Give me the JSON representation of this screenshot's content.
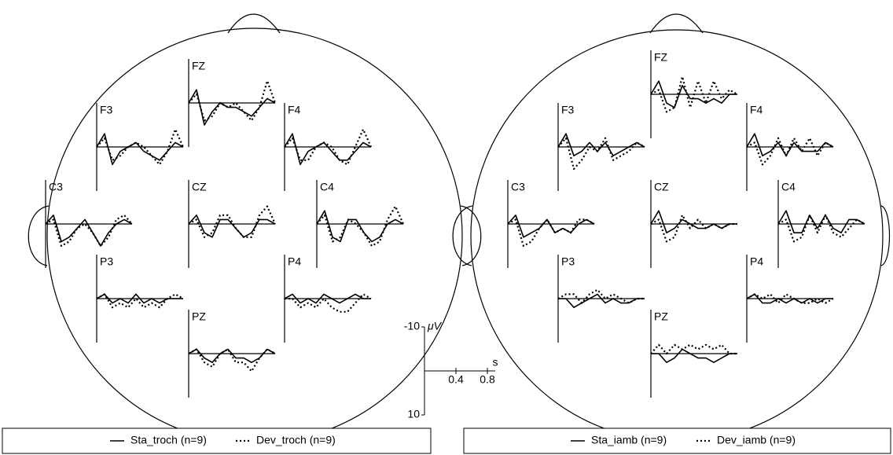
{
  "chart_data": [
    {
      "type": "erp-head",
      "x": [
        0,
        0.1,
        0.2,
        0.3,
        0.4,
        0.5,
        0.6,
        0.7,
        0.8,
        0.9,
        1.0,
        1.1
      ],
      "xlim": [
        0,
        1.1
      ],
      "ylim": [
        -10,
        10
      ],
      "y_inverted": true,
      "series": [
        {
          "name": "Sta_troch (n=9)",
          "color": "#000000",
          "dash": "solid"
        },
        {
          "name": "Dev_troch (n=9)",
          "color": "#000000",
          "dash": "dotted"
        }
      ],
      "electrodes": [
        {
          "label": "F3",
          "values": [
            [
              0,
              -3,
              4,
              1,
              0,
              -1,
              1,
              2,
              3,
              1,
              -1,
              0
            ],
            [
              0,
              -2,
              3,
              2,
              0,
              -1,
              0,
              2,
              4,
              1,
              -4,
              0
            ]
          ]
        },
        {
          "label": "FZ",
          "values": [
            [
              0,
              -3,
              5,
              2,
              0,
              1,
              1,
              2,
              3,
              1,
              -1,
              0
            ],
            [
              0,
              -2,
              4,
              3,
              0,
              1,
              0,
              2,
              4,
              1,
              -5,
              0
            ]
          ]
        },
        {
          "label": "F4",
          "values": [
            [
              0,
              -3,
              4,
              1,
              0,
              -1,
              1,
              3,
              3,
              1,
              -1,
              0
            ],
            [
              0,
              -2,
              3,
              3,
              0,
              -1,
              0,
              3,
              4,
              0,
              -4,
              0
            ]
          ]
        },
        {
          "label": "C3",
          "values": [
            [
              0,
              -2,
              4,
              3,
              1,
              -1,
              2,
              5,
              2,
              0,
              -1,
              0
            ],
            [
              0,
              -1,
              5,
              4,
              1,
              0,
              2,
              5,
              3,
              -1,
              -2,
              0
            ]
          ]
        },
        {
          "label": "CZ",
          "values": [
            [
              0,
              -2,
              2,
              3,
              -1,
              -1,
              1,
              3,
              2,
              -1,
              -1,
              0
            ],
            [
              0,
              -1,
              3,
              2,
              -2,
              -2,
              1,
              3,
              3,
              -2,
              -4,
              0
            ]
          ]
        },
        {
          "label": "C4",
          "values": [
            [
              0,
              -3,
              3,
              4,
              -1,
              -1,
              2,
              4,
              3,
              0,
              -1,
              0
            ],
            [
              0,
              -2,
              4,
              3,
              -1,
              0,
              2,
              5,
              4,
              -1,
              -4,
              0
            ]
          ]
        },
        {
          "label": "P3",
          "values": [
            [
              0,
              -1,
              1,
              0,
              1,
              -1,
              1,
              0,
              1,
              0,
              0,
              0
            ],
            [
              0,
              -1,
              2,
              1,
              2,
              0,
              2,
              1,
              2,
              0,
              -1,
              0
            ]
          ]
        },
        {
          "label": "P4",
          "values": [
            [
              0,
              -1,
              1,
              0,
              1,
              -1,
              0,
              1,
              0,
              -1,
              0,
              0
            ],
            [
              0,
              0,
              2,
              1,
              2,
              0,
              2,
              3,
              3,
              1,
              -1,
              0
            ]
          ]
        },
        {
          "label": "PZ",
          "values": [
            [
              0,
              -1,
              1,
              2,
              0,
              -1,
              1,
              1,
              2,
              1,
              -1,
              0
            ],
            [
              0,
              -1,
              2,
              3,
              0,
              -1,
              2,
              2,
              4,
              1,
              -1,
              0
            ]
          ]
        }
      ]
    },
    {
      "type": "erp-head",
      "x": [
        0,
        0.1,
        0.2,
        0.3,
        0.4,
        0.5,
        0.6,
        0.7,
        0.8,
        0.9,
        1.0,
        1.1
      ],
      "xlim": [
        0,
        1.1
      ],
      "ylim": [
        -10,
        10
      ],
      "y_inverted": true,
      "series": [
        {
          "name": "Sta_iamb (n=9)",
          "color": "#000000",
          "dash": "solid"
        },
        {
          "name": "Dev_iamb (n=9)",
          "color": "#000000",
          "dash": "dotted"
        }
      ],
      "electrodes": [
        {
          "label": "F3",
          "values": [
            [
              0,
              -3,
              2,
              1,
              -1,
              1,
              -1,
              2,
              1,
              0,
              -1,
              0
            ],
            [
              0,
              -2,
              5,
              3,
              0,
              1,
              -2,
              3,
              2,
              1,
              -1,
              0
            ]
          ]
        },
        {
          "label": "FZ",
          "values": [
            [
              0,
              -3,
              2,
              3,
              -2,
              1,
              1,
              2,
              1,
              2,
              0,
              0
            ],
            [
              0,
              -1,
              4,
              3,
              -4,
              3,
              -3,
              2,
              -3,
              1,
              -1,
              0
            ]
          ]
        },
        {
          "label": "F4",
          "values": [
            [
              0,
              -3,
              2,
              1,
              -1,
              2,
              -1,
              1,
              1,
              1,
              -1,
              0
            ],
            [
              0,
              -1,
              4,
              2,
              -2,
              2,
              -2,
              1,
              -2,
              2,
              -1,
              0
            ]
          ]
        },
        {
          "label": "C3",
          "values": [
            [
              0,
              -2,
              3,
              2,
              1,
              -1,
              2,
              1,
              2,
              0,
              -1,
              0
            ],
            [
              0,
              -1,
              5,
              4,
              1,
              -1,
              2,
              1,
              2,
              -1,
              -1,
              0
            ]
          ]
        },
        {
          "label": "CZ",
          "values": [
            [
              0,
              -3,
              2,
              1,
              -1,
              0,
              1,
              1,
              0,
              1,
              0,
              0
            ],
            [
              0,
              -1,
              4,
              3,
              -2,
              1,
              -1,
              1,
              0,
              1,
              0,
              0
            ]
          ]
        },
        {
          "label": "C4",
          "values": [
            [
              0,
              -3,
              2,
              2,
              -2,
              1,
              -2,
              1,
              2,
              -1,
              -1,
              0
            ],
            [
              0,
              -1,
              4,
              3,
              -2,
              2,
              -2,
              2,
              3,
              1,
              -1,
              0
            ]
          ]
        },
        {
          "label": "P3",
          "values": [
            [
              0,
              0,
              2,
              1,
              0,
              -1,
              1,
              0,
              1,
              1,
              0,
              0
            ],
            [
              0,
              -1,
              -1,
              1,
              -1,
              -2,
              0,
              -1,
              0,
              1,
              0,
              0
            ]
          ]
        },
        {
          "label": "P4",
          "values": [
            [
              0,
              -1,
              1,
              1,
              0,
              1,
              0,
              1,
              0,
              1,
              0,
              0
            ],
            [
              0,
              -1,
              0,
              -1,
              1,
              -1,
              0,
              1,
              1,
              0,
              1,
              0
            ]
          ]
        },
        {
          "label": "PZ",
          "values": [
            [
              0,
              0,
              2,
              1,
              -1,
              0,
              1,
              1,
              2,
              1,
              0,
              0
            ],
            [
              0,
              -2,
              0,
              -2,
              -1,
              -2,
              -1,
              -2,
              -1,
              -2,
              0,
              0
            ]
          ]
        }
      ]
    }
  ],
  "scale_bar": {
    "yticks": [
      -10,
      10
    ],
    "y_unit": "μV",
    "xticks": [
      0.4,
      0.8
    ],
    "x_unit": "s"
  }
}
